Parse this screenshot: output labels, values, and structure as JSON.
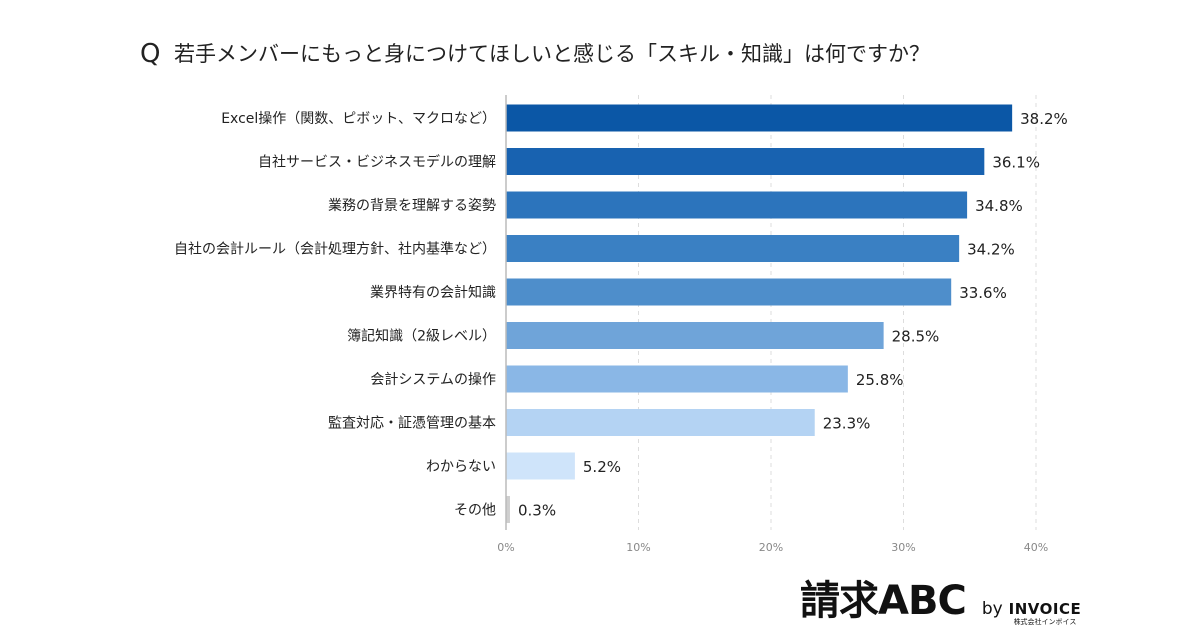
{
  "chart_data": {
    "type": "bar",
    "orientation": "horizontal",
    "title": "若手メンバーにもっと身につけてほしいと感じる「スキル・知識」は何ですか？",
    "title_prefix": "Q",
    "categories": [
      "Excel操作（関数、ピボット、マクロなど）",
      "自社サービス・ビジネスモデルの理解",
      "業務の背景を理解する姿勢",
      "自社の会計ルール（会計処理方針、社内基準など）",
      "業界特有の会計知識",
      "簿記知識（2級レベル）",
      "会計システムの操作",
      "監査対応・証憑管理の基本",
      "わからない",
      "その他"
    ],
    "values": [
      38.2,
      36.1,
      34.8,
      34.2,
      33.6,
      28.5,
      25.8,
      23.3,
      5.2,
      0.3
    ],
    "value_labels": [
      "38.2%",
      "36.1%",
      "34.8%",
      "34.2%",
      "33.6%",
      "28.5%",
      "25.8%",
      "23.3%",
      "5.2%",
      "0.3%"
    ],
    "colors": [
      "#0B57A6",
      "#1862B0",
      "#2C74BC",
      "#3A80C3",
      "#4E8ECB",
      "#6FA4D9",
      "#8AB7E6",
      "#B4D3F3",
      "#CFE4FA",
      "#CFCFCF"
    ],
    "xlim": [
      0,
      40
    ],
    "xticks": [
      0,
      10,
      20,
      30,
      40
    ],
    "xtick_labels": [
      "0%",
      "10%",
      "20%",
      "30%",
      "40%"
    ],
    "grid": true,
    "legend": "none"
  },
  "logo": {
    "main": "請求ABC",
    "by": "by",
    "company": "INVOICE",
    "company_sub": "株式会社インボイス"
  }
}
